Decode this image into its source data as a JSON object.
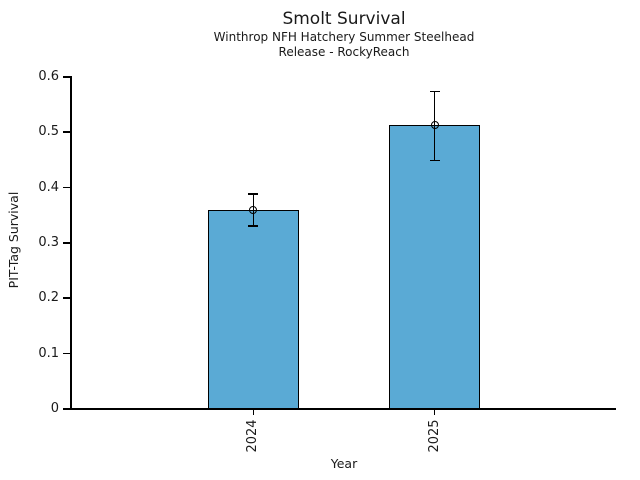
{
  "chart_data": {
    "type": "bar",
    "title": "Smolt Survival",
    "subtitle_lines": [
      "Winthrop NFH Hatchery Summer Steelhead",
      "Release - RockyReach"
    ],
    "xlabel": "Year",
    "ylabel": "PIT-Tag Survival",
    "categories": [
      "2024",
      "2025"
    ],
    "values": [
      0.358,
      0.511
    ],
    "error_low": [
      0.329,
      0.447
    ],
    "error_high": [
      0.387,
      0.572
    ],
    "ylim": [
      0,
      0.6
    ],
    "yticks": [
      0,
      0.1,
      0.2,
      0.3,
      0.4,
      0.5,
      0.6
    ],
    "ytick_labels": [
      "0",
      "0.1",
      "0.2",
      "0.3",
      "0.4",
      "0.5",
      "0.6"
    ],
    "grid": false,
    "legend_position": "none",
    "bar_color": "#5AAAD5",
    "bar_edge_color": "#000000",
    "error_color": "#000000",
    "marker": "open-circle",
    "background_color": "#FFFFFF",
    "text_color": "#1A1A1A"
  }
}
